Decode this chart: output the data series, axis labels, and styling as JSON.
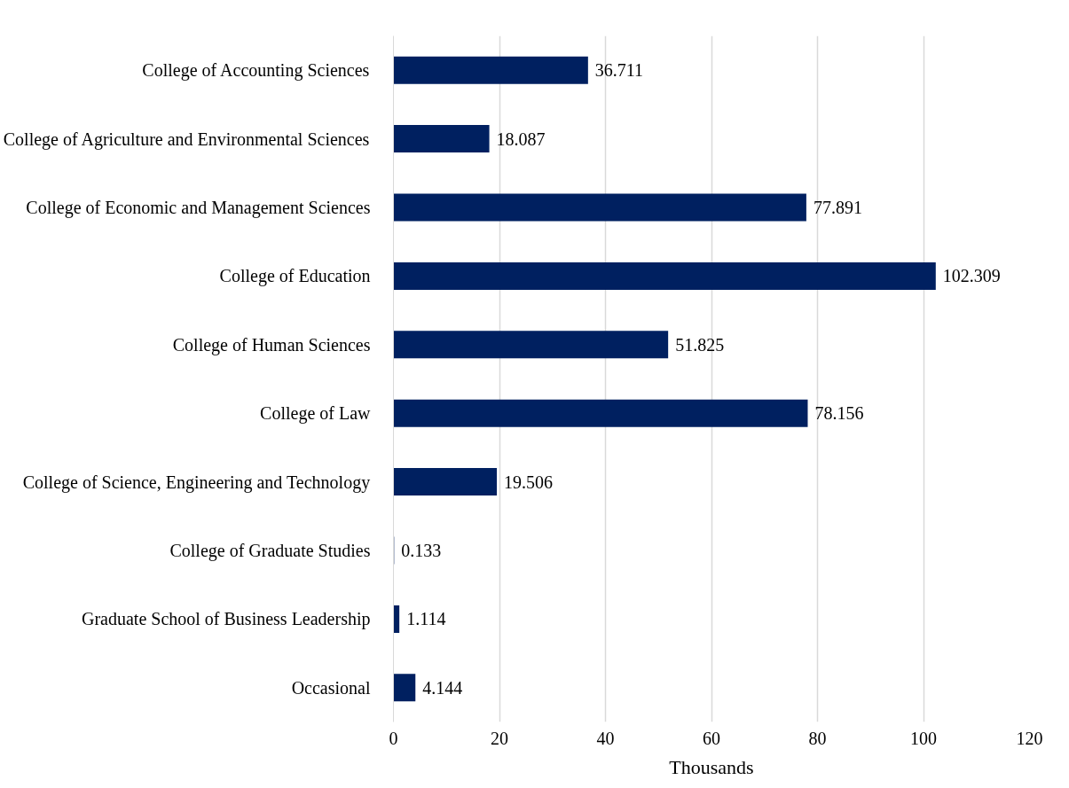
{
  "chart_data": {
    "type": "bar",
    "orientation": "horizontal",
    "xlabel": "Thousands",
    "categories": [
      "College of Accounting Sciences",
      "College of Agriculture and Environmental Sciences",
      "College of Economic and Management Sciences",
      "College of Education",
      "College of Human Sciences",
      "College of Law",
      "College of Science, Engineering and Technology",
      "College of Graduate Studies",
      "Graduate School of Business Leadership",
      "Occasional"
    ],
    "values": [
      36.711,
      18.087,
      77.891,
      102.309,
      51.825,
      78.156,
      19.506,
      0.133,
      1.114,
      4.144
    ],
    "color": "#002060",
    "xlim": [
      0,
      120
    ],
    "xticks": [
      0,
      20,
      40,
      60,
      80,
      100,
      120
    ],
    "grid": "x",
    "data_labels": true
  }
}
